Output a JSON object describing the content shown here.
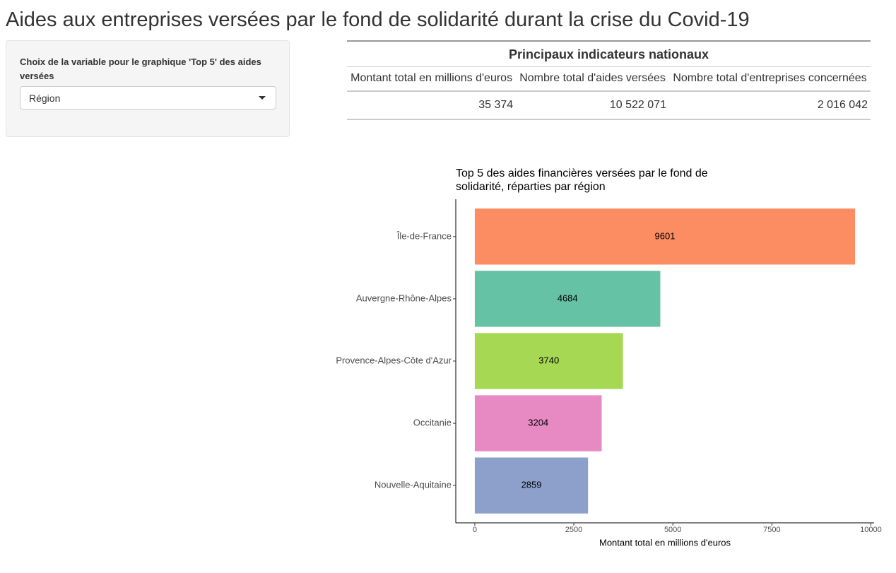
{
  "header": {
    "title": "Aides aux entreprises versées par le fond de solidarité durant la crise du Covid-19"
  },
  "sidebar": {
    "label": "Choix de la variable pour le graphique 'Top 5' des aides versées",
    "selected": "Région"
  },
  "table": {
    "title": "Principaux indicateurs nationaux",
    "columns": [
      "Montant total en millions d'euros",
      "Nombre total d'aides versées",
      "Nombre total d'entreprises concernées"
    ],
    "rows": [
      [
        "35 374",
        "10 522 071",
        "2 016 042"
      ]
    ]
  },
  "chart_data": {
    "type": "barh",
    "title": "Top 5 des aides financières versées par le fond de solidarité, réparties par région",
    "x_label": "Montant total en millions d'euros",
    "categories": [
      "Île-de-France",
      "Auvergne-Rhône-Alpes",
      "Provence-Alpes-Côte d'Azur",
      "Occitanie",
      "Nouvelle-Aquitaine"
    ],
    "values": [
      9601,
      4684,
      3740,
      3204,
      2859
    ],
    "colors": [
      "#fc8d62",
      "#66c2a5",
      "#a6d854",
      "#e78ac3",
      "#8da0cb"
    ],
    "xlim": [
      -480,
      10081
    ],
    "xticks": [
      0,
      2500,
      5000,
      7500,
      10000
    ],
    "grid": false
  }
}
